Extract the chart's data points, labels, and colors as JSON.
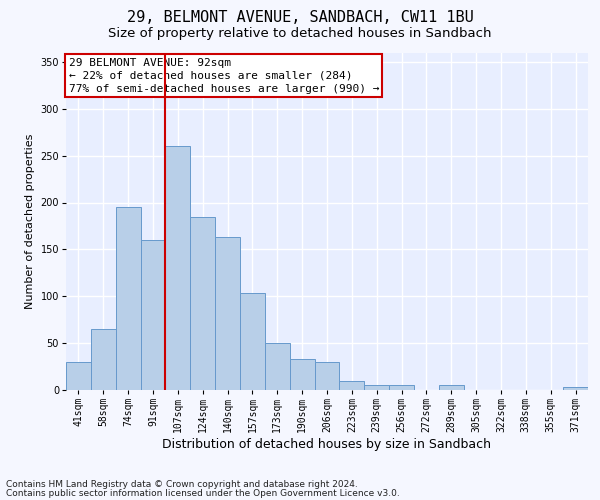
{
  "title1": "29, BELMONT AVENUE, SANDBACH, CW11 1BU",
  "title2": "Size of property relative to detached houses in Sandbach",
  "xlabel": "Distribution of detached houses by size in Sandbach",
  "ylabel": "Number of detached properties",
  "categories": [
    "41sqm",
    "58sqm",
    "74sqm",
    "91sqm",
    "107sqm",
    "124sqm",
    "140sqm",
    "157sqm",
    "173sqm",
    "190sqm",
    "206sqm",
    "223sqm",
    "239sqm",
    "256sqm",
    "272sqm",
    "289sqm",
    "305sqm",
    "322sqm",
    "338sqm",
    "355sqm",
    "371sqm"
  ],
  "values": [
    30,
    65,
    195,
    160,
    260,
    185,
    163,
    103,
    50,
    33,
    30,
    10,
    5,
    5,
    0,
    5,
    0,
    0,
    0,
    0,
    3
  ],
  "bar_color": "#b8cfe8",
  "bar_edge_color": "#6699cc",
  "vline_x_index": 3,
  "vline_color": "#cc0000",
  "annotation_lines": [
    "29 BELMONT AVENUE: 92sqm",
    "← 22% of detached houses are smaller (284)",
    "77% of semi-detached houses are larger (990) →"
  ],
  "annotation_box_color": "#ffffff",
  "annotation_box_edge_color": "#cc0000",
  "footnote1": "Contains HM Land Registry data © Crown copyright and database right 2024.",
  "footnote2": "Contains public sector information licensed under the Open Government Licence v3.0.",
  "ylim": [
    0,
    360
  ],
  "yticks": [
    0,
    50,
    100,
    150,
    200,
    250,
    300,
    350
  ],
  "bg_color": "#e8eeff",
  "grid_color": "#ffffff",
  "fig_bg_color": "#f5f7ff",
  "title1_fontsize": 11,
  "title2_fontsize": 9.5,
  "xlabel_fontsize": 9,
  "ylabel_fontsize": 8,
  "tick_fontsize": 7,
  "annotation_fontsize": 8,
  "footnote_fontsize": 6.5
}
